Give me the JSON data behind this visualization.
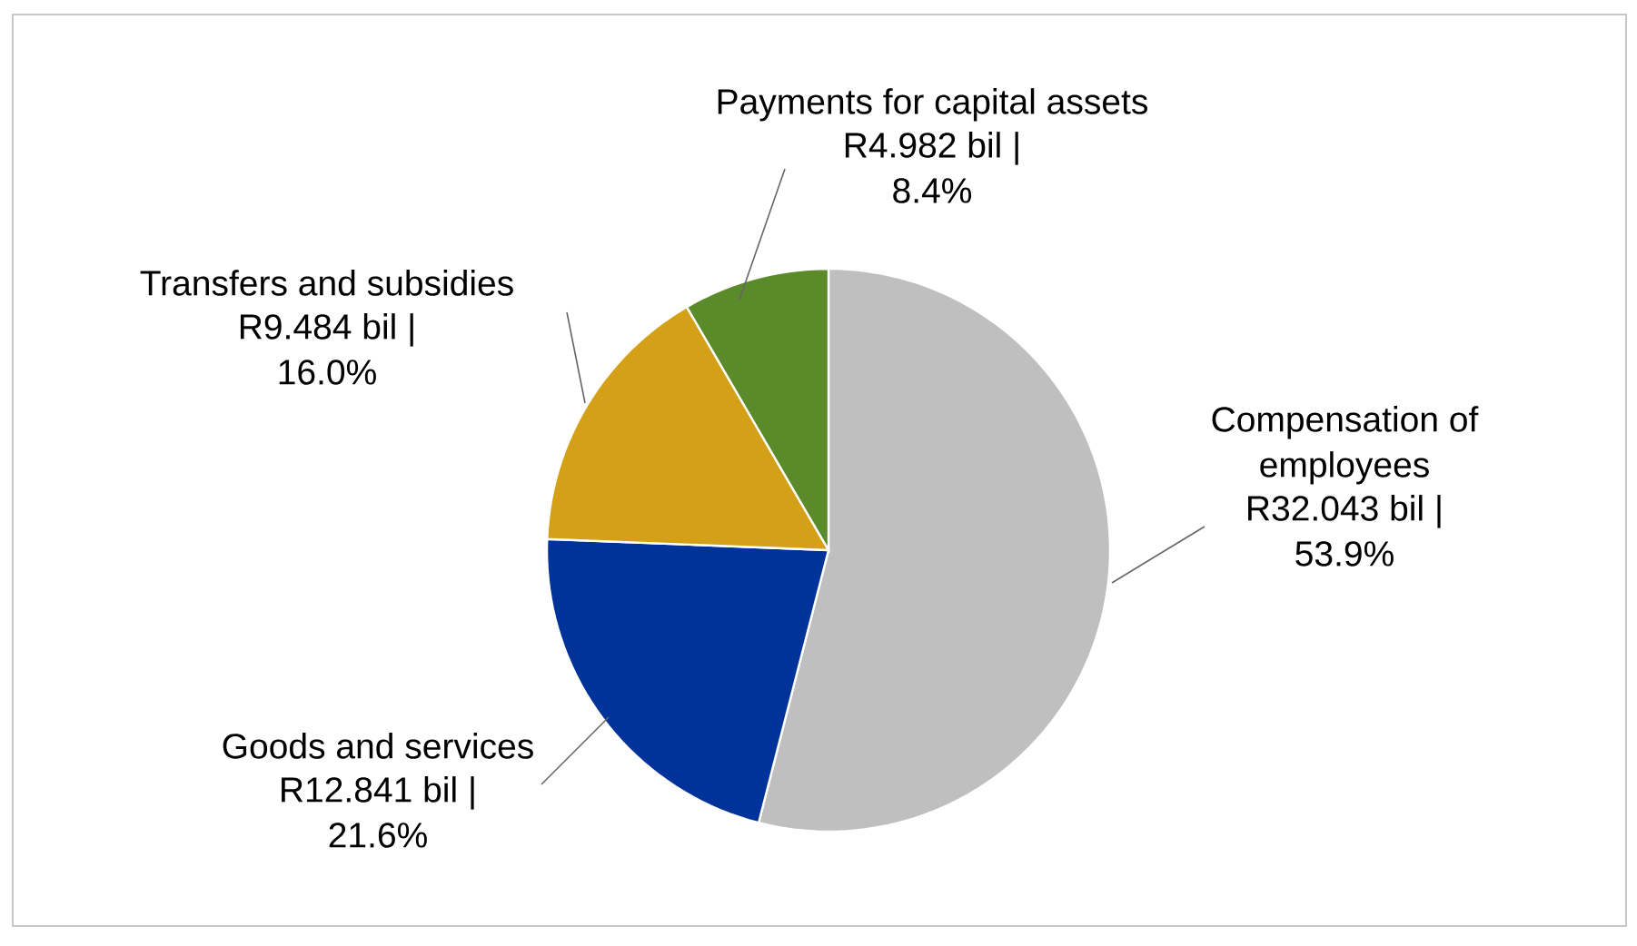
{
  "chart_data": {
    "type": "pie",
    "categories": [
      "Compensation of employees",
      "Goods and services",
      "Transfers and subsidies",
      "Payments for capital assets"
    ],
    "values": [
      32.043,
      12.841,
      9.484,
      4.982
    ],
    "colors": [
      "#bfbfbf",
      "#003399",
      "#d4a017",
      "#5b8a2a"
    ],
    "value_labels": [
      "R32.043 bil | 53.9%",
      "R12.841 bil | 21.6%",
      "R9.484 bil | 16.0%",
      "R4.982 bil | 8.4%"
    ]
  }
}
